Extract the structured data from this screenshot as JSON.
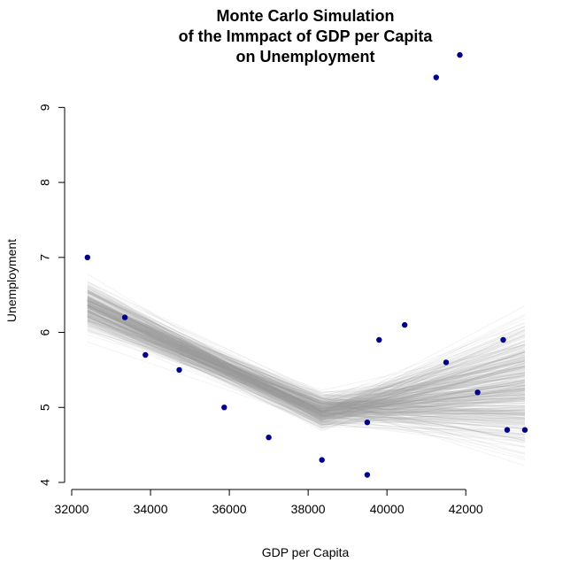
{
  "chart_data": {
    "type": "scatter",
    "title_lines": [
      "Monte Carlo Simulation",
      "of the Immpact of GDP per Capita",
      "on Unemployment"
    ],
    "xlabel": "GDP per Capita",
    "ylabel": "Unemployment",
    "xlim": [
      32000,
      43500
    ],
    "ylim": [
      4,
      9.5
    ],
    "xticks": [
      32000,
      34000,
      36000,
      38000,
      40000,
      42000
    ],
    "xtick_labels": [
      "32000",
      "34000",
      "36000",
      "38000",
      "40000",
      "42000"
    ],
    "yticks": [
      4,
      5,
      6,
      7,
      8,
      9
    ],
    "ytick_labels": [
      "4",
      "5",
      "6",
      "7",
      "8",
      "9"
    ],
    "grid": false,
    "point_color": "#00008B",
    "simulation_line_color": "#A0A0A0",
    "points": [
      {
        "x": 32400,
        "y": 7.0
      },
      {
        "x": 33350,
        "y": 6.2
      },
      {
        "x": 33870,
        "y": 5.7
      },
      {
        "x": 34730,
        "y": 5.5
      },
      {
        "x": 35870,
        "y": 5.0
      },
      {
        "x": 37000,
        "y": 4.6
      },
      {
        "x": 38350,
        "y": 4.3
      },
      {
        "x": 39500,
        "y": 4.8
      },
      {
        "x": 39500,
        "y": 4.1
      },
      {
        "x": 39800,
        "y": 5.9
      },
      {
        "x": 40450,
        "y": 6.1
      },
      {
        "x": 41250,
        "y": 9.4
      },
      {
        "x": 41500,
        "y": 5.6
      },
      {
        "x": 41850,
        "y": 9.7
      },
      {
        "x": 42300,
        "y": 5.2
      },
      {
        "x": 42950,
        "y": 5.9
      },
      {
        "x": 43050,
        "y": 4.7
      },
      {
        "x": 43500,
        "y": 4.7
      }
    ],
    "simulation_fit": {
      "knots_x": [
        32400,
        38350,
        43500
      ],
      "mean_y": [
        6.35,
        4.95,
        5.3
      ],
      "spread_y": [
        0.35,
        0.25,
        0.9
      ],
      "n_lines": 400
    }
  }
}
